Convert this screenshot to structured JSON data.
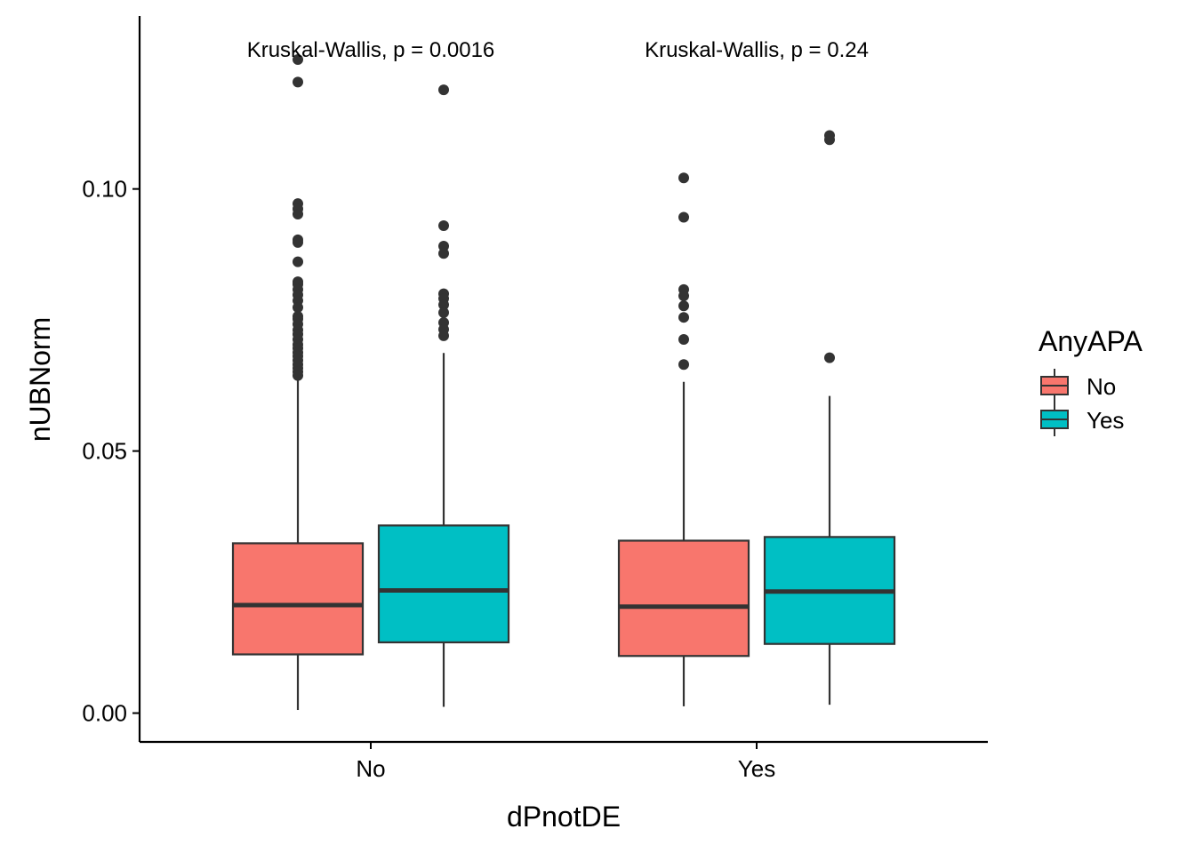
{
  "chart_data": {
    "type": "box",
    "xlabel": "dPnotDE",
    "ylabel": "nUBNorm",
    "categories": [
      "No",
      "Yes"
    ],
    "yticks": [
      0.0,
      0.05,
      0.1
    ],
    "ytick_labels": [
      "0.00",
      "0.05",
      "0.10"
    ],
    "ylim": [
      -0.0055,
      0.133
    ],
    "legend": {
      "title": "AnyAPA",
      "position": "right",
      "items": [
        {
          "label": "No",
          "color": "#F8766D"
        },
        {
          "label": "Yes",
          "color": "#00BFC4"
        }
      ]
    },
    "annotations": [
      {
        "category": "No",
        "text": "Kruskal-Wallis, p = 0.0016"
      },
      {
        "category": "Yes",
        "text": "Kruskal-Wallis, p = 0.24"
      }
    ],
    "series": [
      {
        "name": "No",
        "color": "#F8766D",
        "boxes": [
          {
            "category": "No",
            "whisker_low": 0.0006,
            "q1": 0.0112,
            "median": 0.0206,
            "q3": 0.0324,
            "whisker_high": 0.0638,
            "outliers": [
              0.1247,
              0.1204,
              0.0972,
              0.0962,
              0.0952,
              0.0903,
              0.0898,
              0.0861,
              0.0823,
              0.0818,
              0.0808,
              0.0798,
              0.0787,
              0.0774,
              0.0757,
              0.0752,
              0.0742,
              0.0731,
              0.0723,
              0.0713,
              0.0703,
              0.0696,
              0.0688,
              0.0681,
              0.0673,
              0.0665,
              0.0658,
              0.0651,
              0.0644
            ]
          },
          {
            "category": "Yes",
            "whisker_low": 0.0013,
            "q1": 0.0109,
            "median": 0.0203,
            "q3": 0.0329,
            "whisker_high": 0.0632,
            "outliers": [
              0.1021,
              0.0946,
              0.0808,
              0.0796,
              0.0777,
              0.0755,
              0.0713,
              0.0665
            ]
          }
        ]
      },
      {
        "name": "Yes",
        "color": "#00BFC4",
        "boxes": [
          {
            "category": "No",
            "whisker_low": 0.0012,
            "q1": 0.0135,
            "median": 0.0234,
            "q3": 0.0358,
            "whisker_high": 0.0687,
            "outliers": [
              0.1189,
              0.093,
              0.0891,
              0.0877,
              0.08,
              0.0791,
              0.0779,
              0.0764,
              0.0745,
              0.0732,
              0.072
            ]
          },
          {
            "category": "Yes",
            "whisker_low": 0.0016,
            "q1": 0.0132,
            "median": 0.0232,
            "q3": 0.0336,
            "whisker_high": 0.0605,
            "outliers": [
              0.1102,
              0.1094,
              0.0678
            ]
          }
        ]
      }
    ]
  }
}
